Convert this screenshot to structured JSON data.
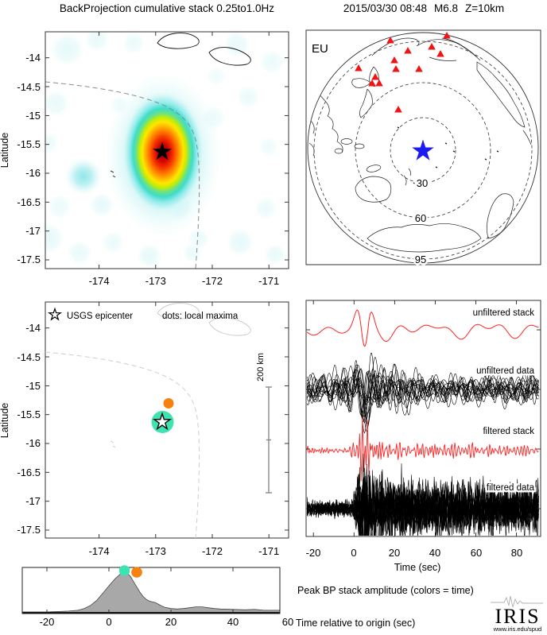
{
  "figure": {
    "left_title": "BackProjection cumulative stack 0.25to1.0Hz",
    "right_title_date": "2015/03/30 08:48",
    "right_title_mag": "M6.8",
    "right_title_depth": "Z=10km"
  },
  "bp_map": {
    "ylabel": "Latitude",
    "yticks": [
      "-14",
      "-14.5",
      "-15",
      "-15.5",
      "-16",
      "-16.5",
      "-17",
      "-17.5"
    ],
    "xticks": [
      "-174",
      "-173",
      "-172",
      "-171"
    ]
  },
  "globe": {
    "array_label": "EU",
    "ring_labels": [
      "30",
      "60",
      "95"
    ]
  },
  "maxima_map": {
    "ylabel": "Latitude",
    "yticks": [
      "-14",
      "-14.5",
      "-15",
      "-15.5",
      "-16",
      "-16.5",
      "-17",
      "-17.5"
    ],
    "xticks": [
      "-174",
      "-173",
      "-172",
      "-171"
    ],
    "legend_star": "USGS epicenter",
    "legend_dots": "dots: local maxima",
    "scalebar_label": "200 km"
  },
  "seismograms": {
    "trace_labels": [
      "unfiltered stack",
      "unfiltered data",
      "filtered stack",
      "filtered data"
    ],
    "xticks": [
      "-20",
      "0",
      "20",
      "40",
      "60",
      "80"
    ],
    "xlabel": "Time (sec)"
  },
  "timeline": {
    "xticks": [
      "-20",
      "0",
      "20",
      "40",
      "60"
    ],
    "caption": "Peak BP stack amplitude (colors = time)",
    "xlabel": "Time relative to origin (sec)"
  },
  "logo": {
    "text": "IRIS",
    "sub": "www.iris.edu/spud"
  },
  "colors": {
    "teal": "#3DE3B1",
    "orange": "#F8800F",
    "station_red": "#F01414",
    "epicenter_blue": "#1C1CF2",
    "stack_red": "#FF2222",
    "heat_core": "#A00000",
    "histogram_fill": "#A8A8A8"
  },
  "chart_data": [
    {
      "type": "heatmap",
      "panel": "top-left",
      "title": "BackProjection cumulative stack 0.25to1.0Hz",
      "ylabel": "Latitude",
      "xticks": [
        -174,
        -173,
        -172,
        -171
      ],
      "yticks": [
        -14,
        -14.5,
        -15,
        -15.5,
        -16,
        -16.5,
        -17,
        -17.5
      ],
      "xlim": [
        -174.95,
        -170.65
      ],
      "ylim": [
        -17.65,
        -13.55
      ],
      "colormap": "white/pale-cyan (low) through cyan, yellow, orange to dark red (high)",
      "peak": {
        "lon": -172.9,
        "lat": -15.6
      },
      "epicenter_marker": {
        "shape": "black star",
        "lon": -172.9,
        "lat": -15.6
      },
      "overlays": [
        "Samoa island coastlines (top)",
        "dashed trench/plate-boundary line"
      ]
    },
    {
      "type": "map",
      "panel": "top-right",
      "title": "2015/03/30 08:48 M6.8 Z=10km",
      "projection": "azimuthal, centered on epicenter",
      "array_label": "EU",
      "epicenter_marker": "blue star at center",
      "stations": {
        "marker": "red triangles",
        "count": 13,
        "location": "upper (north-west azimuth) cluster"
      },
      "distance_rings_deg": [
        30,
        60,
        95
      ],
      "grid": "dashed concentric distance circles, coastlines drawn in black"
    },
    {
      "type": "scatter",
      "panel": "middle-left",
      "legend": [
        "USGS epicenter (open star)",
        "dots: local maxima"
      ],
      "ylabel": "Latitude",
      "xticks": [
        -174,
        -173,
        -172,
        -171
      ],
      "yticks": [
        -14,
        -14.5,
        -15,
        -15.5,
        -16,
        -16.5,
        -17,
        -17.5
      ],
      "points": [
        {
          "lon": -172.9,
          "lat": -15.6,
          "color": "#3DE3B1",
          "size": "large",
          "note": "coincides with USGS epicenter star"
        },
        {
          "lon": -172.8,
          "lat": -15.25,
          "color": "#F8800F",
          "size": "small"
        }
      ],
      "scale_bar": {
        "label": "200 km"
      }
    },
    {
      "type": "line",
      "panel": "middle-right",
      "xlabel": "Time (sec)",
      "xlim": [
        -23,
        91
      ],
      "xticks": [
        -20,
        0,
        20,
        40,
        60,
        80
      ],
      "series": [
        {
          "name": "unfiltered stack",
          "color": "red",
          "style": "single smooth trace, strong pulse near 0-10 s"
        },
        {
          "name": "unfiltered data",
          "color": "black",
          "style": "many overlapping station traces, coherent pulse near 0-10 s"
        },
        {
          "name": "filtered stack",
          "color": "red",
          "style": "single high-frequency trace, burst near 0-10 s"
        },
        {
          "name": "filtered data",
          "color": "black",
          "style": "many overlapping high-frequency traces, sustained energy after 0 s"
        }
      ]
    },
    {
      "type": "area",
      "panel": "bottom",
      "title": "Peak BP stack amplitude (colors = time)",
      "xlabel": "Time relative to origin (sec)",
      "xticks": [
        -20,
        0,
        20,
        40,
        60
      ],
      "xlim": [
        -28,
        55
      ],
      "fill": "#A8A8A8",
      "samples": [
        [
          -27,
          0.01
        ],
        [
          -20,
          0.01
        ],
        [
          -16,
          0.02
        ],
        [
          -13,
          0.03
        ],
        [
          -10,
          0.05
        ],
        [
          -8,
          0.09
        ],
        [
          -6,
          0.16
        ],
        [
          -4,
          0.28
        ],
        [
          -2,
          0.45
        ],
        [
          0,
          0.63
        ],
        [
          2,
          0.8
        ],
        [
          4,
          0.93
        ],
        [
          5,
          0.97
        ],
        [
          6,
          0.92
        ],
        [
          7,
          0.85
        ],
        [
          8,
          0.72
        ],
        [
          9,
          0.6
        ],
        [
          10,
          0.48
        ],
        [
          11,
          0.38
        ],
        [
          12,
          0.31
        ],
        [
          13,
          0.27
        ],
        [
          14,
          0.25
        ],
        [
          15,
          0.23
        ],
        [
          16,
          0.19
        ],
        [
          17,
          0.15
        ],
        [
          18,
          0.12
        ],
        [
          20,
          0.09
        ],
        [
          22,
          0.08
        ],
        [
          24,
          0.09
        ],
        [
          26,
          0.11
        ],
        [
          28,
          0.13
        ],
        [
          30,
          0.13
        ],
        [
          32,
          0.11
        ],
        [
          34,
          0.09
        ],
        [
          36,
          0.08
        ],
        [
          40,
          0.07
        ],
        [
          44,
          0.06
        ],
        [
          47,
          0.07
        ],
        [
          50,
          0.05
        ],
        [
          53,
          0.05
        ],
        [
          55,
          0.05
        ]
      ],
      "markers": [
        {
          "t": 5,
          "amp": 0.98,
          "color": "#3DE3B1"
        },
        {
          "t": 9,
          "amp": 0.95,
          "color": "#F8800F"
        }
      ]
    }
  ]
}
